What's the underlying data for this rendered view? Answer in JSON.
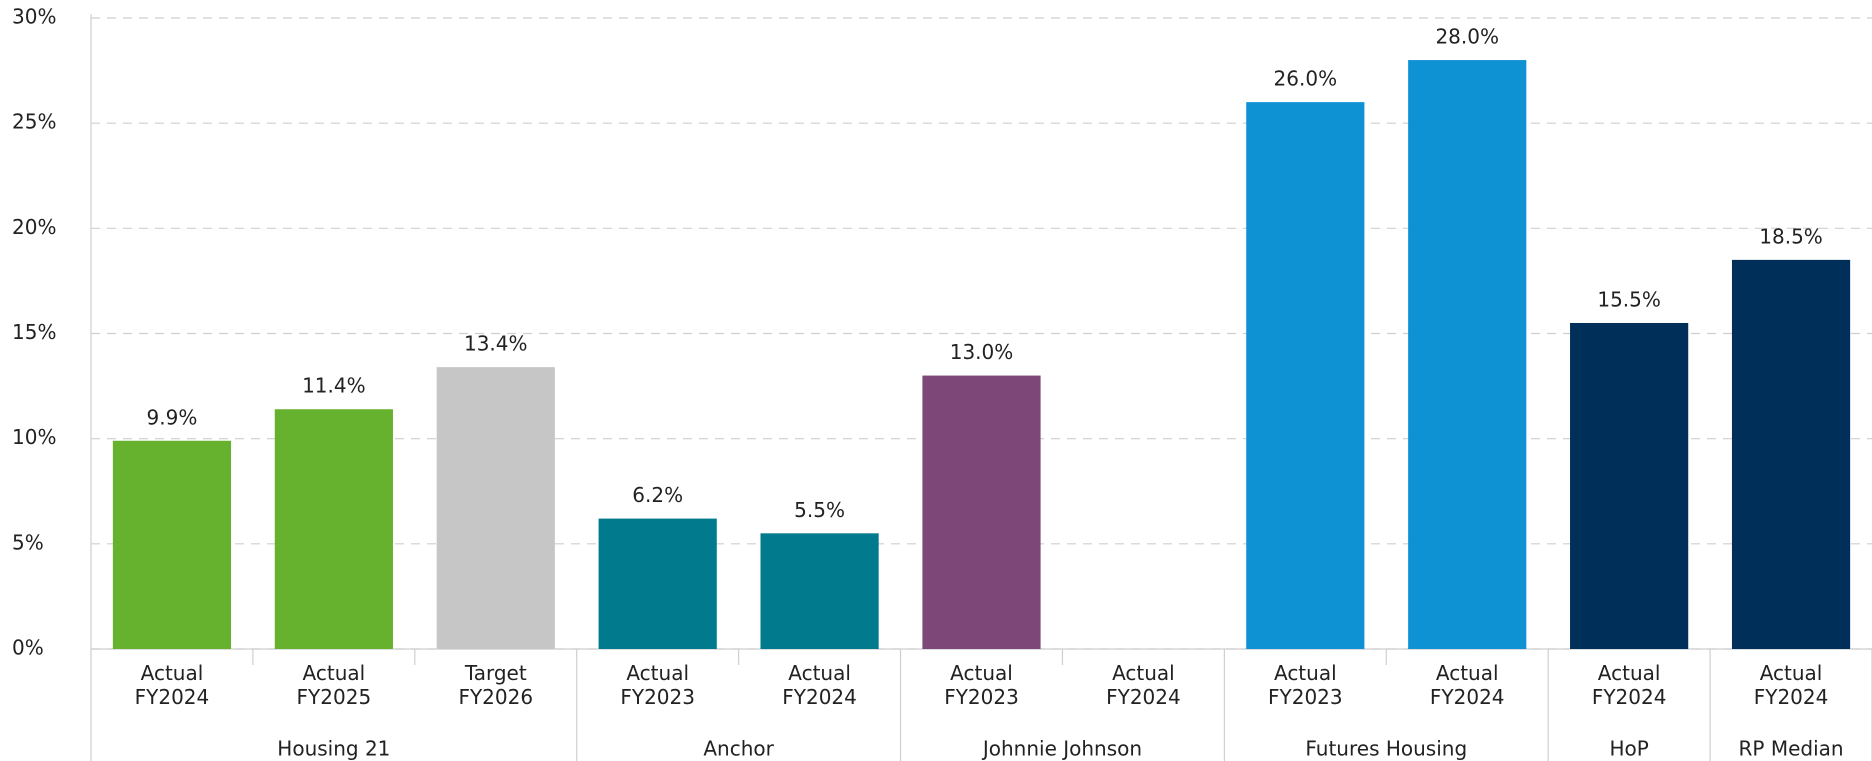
{
  "chart_data": {
    "type": "bar",
    "ylim": [
      0,
      30
    ],
    "yticks": [
      {
        "value": 0,
        "label": "0%"
      },
      {
        "value": 5,
        "label": "5%"
      },
      {
        "value": 10,
        "label": "10%"
      },
      {
        "value": 15,
        "label": "15%"
      },
      {
        "value": 20,
        "label": "20%"
      },
      {
        "value": 25,
        "label": "25%"
      },
      {
        "value": 30,
        "label": "30%"
      }
    ],
    "grid": true,
    "groups": [
      {
        "name": "Housing 21",
        "categories": [
          "Actual FY2024",
          "Actual FY2025",
          "Target FY2026"
        ],
        "values": [
          9.9,
          11.4,
          13.4
        ],
        "value_labels": [
          "9.9%",
          "11.4%",
          "13.4%"
        ],
        "colors": [
          "#66b22e",
          "#66b22e",
          "#c6c6c6"
        ]
      },
      {
        "name": "Anchor",
        "categories": [
          "Actual FY2023",
          "Actual FY2024"
        ],
        "values": [
          6.2,
          5.5
        ],
        "value_labels": [
          "6.2%",
          "5.5%"
        ],
        "colors": [
          "#007a8c",
          "#007a8c"
        ]
      },
      {
        "name": "Johnnie Johnson",
        "categories": [
          "Actual FY2023",
          "Actual FY2024"
        ],
        "values": [
          13.0,
          null
        ],
        "value_labels": [
          "13.0%",
          null
        ],
        "colors": [
          "#7d4878",
          "#7d4878"
        ]
      },
      {
        "name": "Futures Housing",
        "categories": [
          "Actual FY2023",
          "Actual FY2024"
        ],
        "values": [
          26.0,
          28.0
        ],
        "value_labels": [
          "26.0%",
          "28.0%"
        ],
        "colors": [
          "#0e92d4",
          "#0e92d4"
        ]
      },
      {
        "name": "HoP",
        "categories": [
          "Actual FY2024"
        ],
        "values": [
          15.5
        ],
        "value_labels": [
          "15.5%"
        ],
        "colors": [
          "#002f5a"
        ]
      },
      {
        "name": "RP Median",
        "categories": [
          "Actual FY2024"
        ],
        "values": [
          18.5
        ],
        "value_labels": [
          "18.5%"
        ],
        "colors": [
          "#002f5a"
        ]
      }
    ]
  }
}
